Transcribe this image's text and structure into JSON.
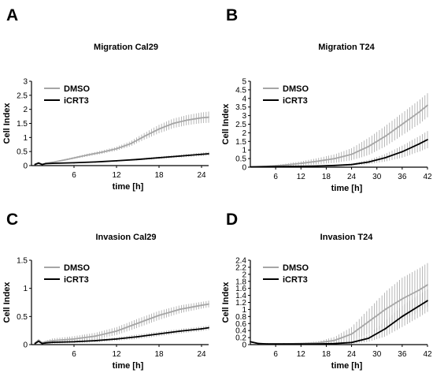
{
  "figure": {
    "panels": [
      "A",
      "B",
      "C",
      "D"
    ]
  },
  "chart_data": [
    {
      "panel": "A",
      "type": "line",
      "title": "Migration Cal29",
      "xlabel": "time [h]",
      "ylabel": "Cell Index",
      "xlim": [
        0,
        25
      ],
      "ylim": [
        0,
        3
      ],
      "xticks": [
        6,
        12,
        18,
        24
      ],
      "yticks": [
        0,
        0.5,
        1,
        1.5,
        2,
        2.5,
        3
      ],
      "ytick_labels": [
        "0",
        "0.5",
        "1",
        "1.5",
        "2",
        "2.5",
        "3"
      ],
      "legend": "top-left",
      "colors": {
        "DMSO": "#a6a6a6",
        "iCRT3": "#000000",
        "errorbars": "#999999"
      },
      "series": [
        {
          "name": "DMSO",
          "x": [
            0.5,
            1,
            1.5,
            2,
            3,
            5,
            8,
            10,
            12,
            14,
            16,
            18,
            20,
            22,
            24,
            25
          ],
          "y": [
            0.05,
            0.1,
            0.04,
            0.08,
            0.12,
            0.22,
            0.38,
            0.48,
            0.6,
            0.78,
            1.05,
            1.3,
            1.5,
            1.62,
            1.7,
            1.72
          ],
          "err": [
            0,
            0.02,
            0.02,
            0.02,
            0.02,
            0.03,
            0.05,
            0.06,
            0.07,
            0.09,
            0.12,
            0.15,
            0.17,
            0.18,
            0.19,
            0.2
          ]
        },
        {
          "name": "iCRT3",
          "x": [
            0.5,
            1,
            1.5,
            2,
            3,
            6,
            9,
            12,
            15,
            18,
            21,
            24,
            25
          ],
          "y": [
            0.04,
            0.09,
            0.04,
            0.07,
            0.08,
            0.1,
            0.13,
            0.17,
            0.22,
            0.28,
            0.34,
            0.4,
            0.42
          ],
          "err": [
            0,
            0.01,
            0.01,
            0.01,
            0.01,
            0.01,
            0.02,
            0.02,
            0.03,
            0.04,
            0.05,
            0.06,
            0.07
          ]
        }
      ]
    },
    {
      "panel": "B",
      "type": "line",
      "title": "Migration T24",
      "xlabel": "time [h]",
      "ylabel": "Cell Index",
      "xlim": [
        0,
        42
      ],
      "ylim": [
        0,
        5
      ],
      "xticks": [
        6,
        12,
        18,
        24,
        30,
        36,
        42
      ],
      "yticks": [
        0,
        0.5,
        1,
        1.5,
        2,
        2.5,
        3,
        3.5,
        4,
        4.5,
        5
      ],
      "ytick_labels": [
        "0",
        "0.5",
        "1",
        "1.5",
        "2",
        "2.5",
        "3",
        "3.5",
        "4",
        "4.5",
        "5"
      ],
      "legend": "top-left",
      "colors": {
        "DMSO": "#a6a6a6",
        "iCRT3": "#000000",
        "errorbars": "#999999"
      },
      "series": [
        {
          "name": "DMSO",
          "x": [
            0,
            4,
            8,
            12,
            16,
            20,
            24,
            28,
            32,
            36,
            40,
            42
          ],
          "y": [
            0.02,
            0.05,
            0.12,
            0.22,
            0.35,
            0.5,
            0.75,
            1.2,
            1.8,
            2.5,
            3.2,
            3.6
          ],
          "err": [
            0.01,
            0.03,
            0.07,
            0.12,
            0.18,
            0.25,
            0.35,
            0.5,
            0.6,
            0.65,
            0.7,
            0.7
          ]
        },
        {
          "name": "iCRT3",
          "x": [
            0,
            4,
            8,
            12,
            16,
            20,
            24,
            28,
            32,
            36,
            40,
            42
          ],
          "y": [
            0.02,
            0.03,
            0.04,
            0.05,
            0.07,
            0.1,
            0.15,
            0.3,
            0.55,
            0.9,
            1.35,
            1.6
          ],
          "err": [
            0.01,
            0.01,
            0.02,
            0.02,
            0.03,
            0.04,
            0.06,
            0.12,
            0.22,
            0.35,
            0.45,
            0.5
          ]
        }
      ]
    },
    {
      "panel": "C",
      "type": "line",
      "title": "Invasion Cal29",
      "xlabel": "time [h]",
      "ylabel": "Cell Index",
      "xlim": [
        0,
        25
      ],
      "ylim": [
        0,
        1.5
      ],
      "xticks": [
        6,
        12,
        18,
        24
      ],
      "yticks": [
        0,
        0.5,
        1,
        1.5
      ],
      "ytick_labels": [
        "0",
        "0.5",
        "1",
        "1.5"
      ],
      "legend": "top-left",
      "colors": {
        "DMSO": "#a6a6a6",
        "iCRT3": "#000000",
        "errorbars": "#999999"
      },
      "series": [
        {
          "name": "DMSO",
          "x": [
            0.5,
            1,
            1.5,
            2,
            3,
            6,
            9,
            12,
            15,
            18,
            21,
            24,
            25
          ],
          "y": [
            0.03,
            0.08,
            0.03,
            0.05,
            0.07,
            0.1,
            0.15,
            0.24,
            0.38,
            0.52,
            0.63,
            0.7,
            0.72
          ],
          "err": [
            0,
            0.02,
            0.02,
            0.02,
            0.04,
            0.05,
            0.06,
            0.07,
            0.08,
            0.08,
            0.07,
            0.06,
            0.06
          ]
        },
        {
          "name": "iCRT3",
          "x": [
            0.5,
            1,
            1.5,
            2,
            3,
            6,
            9,
            12,
            15,
            18,
            21,
            24,
            25
          ],
          "y": [
            0.02,
            0.06,
            0.02,
            0.03,
            0.04,
            0.05,
            0.07,
            0.1,
            0.14,
            0.19,
            0.24,
            0.28,
            0.3
          ],
          "err": [
            0,
            0.02,
            0.01,
            0.01,
            0.02,
            0.02,
            0.03,
            0.03,
            0.04,
            0.04,
            0.04,
            0.04,
            0.04
          ]
        }
      ]
    },
    {
      "panel": "D",
      "type": "line",
      "title": "Invasion T24",
      "xlabel": "time [h]",
      "ylabel": "Cell Index",
      "xlim": [
        0,
        42
      ],
      "ylim": [
        0,
        2.4
      ],
      "xticks": [
        6,
        12,
        18,
        24,
        30,
        36,
        42
      ],
      "yticks": [
        0,
        0.2,
        0.4,
        0.6,
        0.8,
        1,
        1.2,
        1.4,
        1.6,
        1.8,
        2,
        2.2,
        2.4
      ],
      "ytick_labels": [
        "0",
        "0.2",
        "0.4",
        "0.6",
        "0.8",
        "1",
        "1.2",
        "1.4",
        "1.6",
        "1.8",
        "2",
        "2.2",
        "2.4"
      ],
      "legend": "top-left",
      "colors": {
        "DMSO": "#a6a6a6",
        "iCRT3": "#000000",
        "errorbars": "#999999"
      },
      "series": [
        {
          "name": "DMSO",
          "x": [
            0,
            2,
            4,
            8,
            12,
            16,
            20,
            24,
            28,
            32,
            36,
            40,
            42
          ],
          "y": [
            0.08,
            0.03,
            0.02,
            0.02,
            0.03,
            0.05,
            0.12,
            0.3,
            0.65,
            1.0,
            1.3,
            1.55,
            1.7
          ],
          "err": [
            0.02,
            0.02,
            0.02,
            0.02,
            0.02,
            0.04,
            0.1,
            0.2,
            0.35,
            0.5,
            0.6,
            0.62,
            0.62
          ]
        },
        {
          "name": "iCRT3",
          "x": [
            0,
            2,
            4,
            8,
            12,
            16,
            20,
            24,
            28,
            32,
            36,
            40,
            42
          ],
          "y": [
            0.08,
            0.03,
            0.02,
            0.02,
            0.02,
            0.02,
            0.03,
            0.06,
            0.18,
            0.45,
            0.8,
            1.1,
            1.25
          ],
          "err": [
            0.02,
            0.02,
            0.01,
            0.01,
            0.01,
            0.01,
            0.02,
            0.04,
            0.1,
            0.22,
            0.3,
            0.32,
            0.32
          ]
        }
      ]
    }
  ]
}
